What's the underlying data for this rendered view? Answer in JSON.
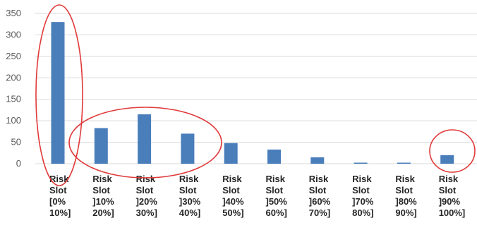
{
  "chart_data": {
    "type": "bar",
    "title": "",
    "xlabel": "",
    "ylabel": "",
    "ylim": [
      0,
      350
    ],
    "yticks": [
      0,
      50,
      100,
      150,
      200,
      250,
      300,
      350
    ],
    "grid": true,
    "legend": "none",
    "bar_color": "#4a7ebb",
    "categories": [
      [
        "Risk",
        "Slot",
        "[0%",
        "10%]"
      ],
      [
        "Risk",
        "Slot",
        "]10%",
        "20%]"
      ],
      [
        "Risk",
        "Slot",
        "]20%",
        "30%]"
      ],
      [
        "Risk",
        "Slot",
        "]30%",
        "40%]"
      ],
      [
        "Risk",
        "Slot",
        "]40%",
        "50%]"
      ],
      [
        "Risk",
        "Slot",
        "]50%",
        "60%]"
      ],
      [
        "Risk",
        "Slot",
        "]60%",
        "70%]"
      ],
      [
        "Risk",
        "Slot",
        "]70%",
        "80%]"
      ],
      [
        "Risk",
        "Slot",
        "]80%",
        "90%]"
      ],
      [
        "Risk",
        "Slot",
        "]90%",
        "100%]"
      ]
    ],
    "values": [
      330,
      83,
      115,
      70,
      48,
      33,
      15,
      2,
      2,
      20
    ]
  },
  "annotations": {
    "ellipse_color": "#e03a3a",
    "highlighted_groups": [
      [
        "Risk Slot [0% 10%]"
      ],
      [
        "Risk Slot ]10% 20%]",
        "Risk Slot ]20% 30%]",
        "Risk Slot ]30% 40%]"
      ],
      [
        "Risk Slot ]90% 100%]"
      ]
    ]
  }
}
